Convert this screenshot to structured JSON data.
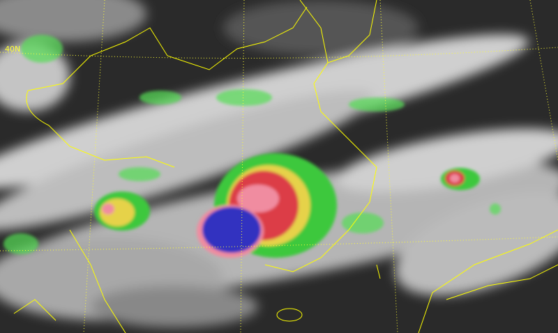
{
  "map": {
    "latitude_label": "40N",
    "colors": {
      "background": "#2a2a2a",
      "cloud": "#d8d8d8",
      "green": "#3cc83c",
      "yellow": "#e6d24a",
      "red": "#dc3c46",
      "pink": "#f08ca0",
      "blue": "#3030c0",
      "boundary": "#ffff00"
    }
  }
}
